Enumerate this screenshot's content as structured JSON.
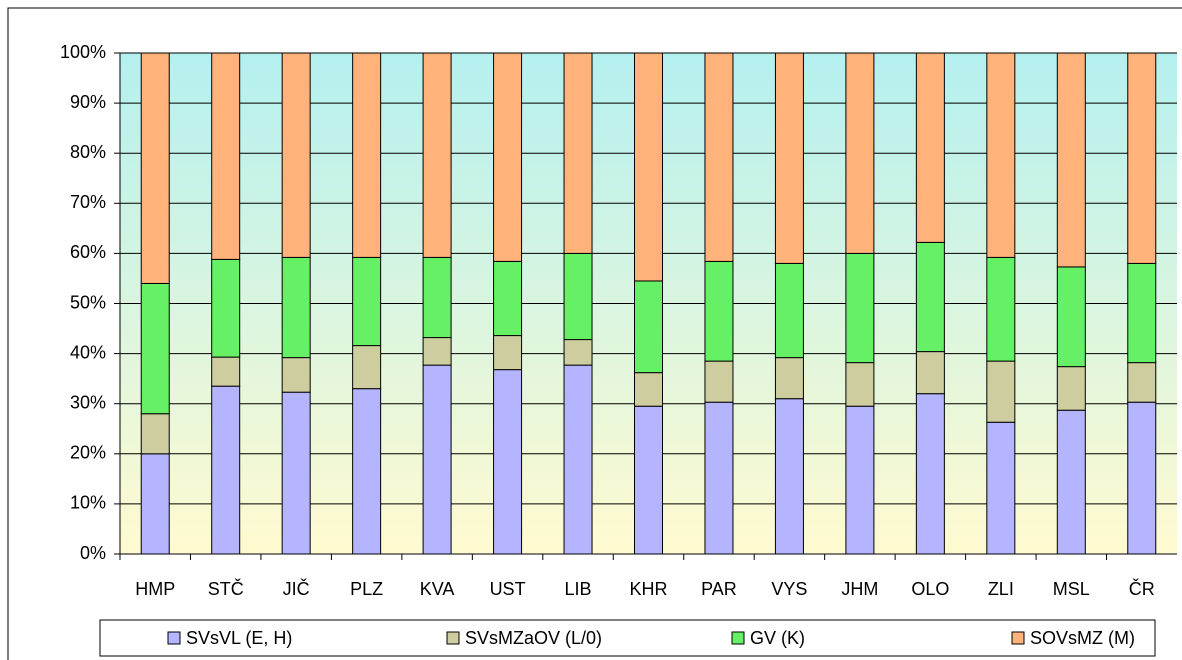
{
  "chart_data": {
    "type": "stacked_bar",
    "categories": [
      "HMP",
      "STČ",
      "JIČ",
      "PLZ",
      "KVA",
      "UST",
      "LIB",
      "KHR",
      "PAR",
      "VYS",
      "JHM",
      "OLO",
      "ZLI",
      "MSL",
      "ČR"
    ],
    "series": [
      {
        "name": "SVsVL (E, H)",
        "color": "#b4b4ff",
        "values": [
          20,
          33.5,
          32.3,
          33,
          37.7,
          36.8,
          37.7,
          29.5,
          30.3,
          31,
          29.5,
          32,
          26.3,
          28.7,
          30.3
        ]
      },
      {
        "name": "SVsMZaOV (L/0)",
        "color": "#cdcda0",
        "values": [
          8,
          5.8,
          6.9,
          8.6,
          5.5,
          6.8,
          5.1,
          6.7,
          8.2,
          8.2,
          8.7,
          8.4,
          12.2,
          8.7,
          7.9
        ]
      },
      {
        "name": "GV (K)",
        "color": "#66f066",
        "values": [
          26,
          19.5,
          20,
          17.6,
          16,
          14.8,
          17.2,
          18.3,
          19.9,
          18.8,
          21.8,
          21.8,
          20.7,
          19.9,
          19.8
        ]
      },
      {
        "name": "SOVsMZ (M)",
        "color": "#ffb27a",
        "values": [
          46,
          41.2,
          40.8,
          40.8,
          40.8,
          41.6,
          40,
          45.5,
          41.6,
          42,
          40,
          37.8,
          40.8,
          42.7,
          42
        ]
      }
    ],
    "ylim": [
      0,
      100
    ],
    "yticks": [
      {
        "value": 0,
        "label": "0%"
      },
      {
        "value": 10,
        "label": "10%"
      },
      {
        "value": 20,
        "label": "20%"
      },
      {
        "value": 30,
        "label": "30%"
      },
      {
        "value": 40,
        "label": "40%"
      },
      {
        "value": 50,
        "label": "50%"
      },
      {
        "value": 60,
        "label": "60%"
      },
      {
        "value": 70,
        "label": "70%"
      },
      {
        "value": 80,
        "label": "80%"
      },
      {
        "value": 90,
        "label": "90%"
      },
      {
        "value": 100,
        "label": "100%"
      }
    ],
    "grid": true,
    "legend": "bottom"
  }
}
